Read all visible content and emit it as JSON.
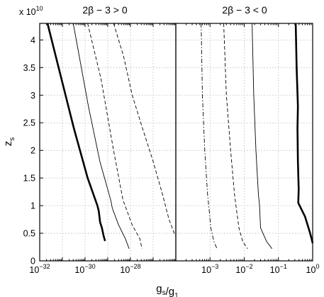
{
  "chart_data": [
    {
      "type": "line",
      "title": "2β − 3 > 0",
      "xlabel": "g_s/g_1",
      "ylabel": "z_s",
      "y_multiplier": "x 10^10",
      "x_scale": "log",
      "xlim": [
        1e-32,
        1e-26
      ],
      "ylim": [
        0,
        43000000000.0
      ],
      "grid": true,
      "x_tick_labels": [
        {
          "base": "10",
          "exp": "−32",
          "value": 1e-32
        },
        {
          "base": "10",
          "exp": "−30",
          "value": 1e-30
        },
        {
          "base": "10",
          "exp": "−28",
          "value": 1e-28
        }
      ],
      "y_tick_labels": [
        "0",
        "0.5",
        "1",
        "1.5",
        "2",
        "2.5",
        "3",
        "3.5",
        "4"
      ],
      "y_tick_values": [
        0,
        5000000000.0,
        10000000000.0,
        15000000000.0,
        20000000000.0,
        25000000000.0,
        30000000000.0,
        35000000000.0,
        40000000000.0
      ],
      "series": [
        {
          "style": "thick-solid",
          "x": [
            2.2e-32,
            3.2e-31,
            1.3e-30,
            3.5e-30,
            4e-30,
            4.6e-30,
            5.5e-30,
            6.5e-30,
            7.6e-30
          ],
          "y": [
            43000000000.0,
            24000000000.0,
            15000000000.0,
            10000000000.0,
            9000000000.0,
            7000000000.0,
            6000000000.0,
            4600000000.0,
            3600000000.0
          ]
        },
        {
          "style": "thin-solid",
          "x": [
            3e-31,
            1.4e-30,
            4.5e-30,
            1.35e-29,
            1.6e-29,
            3e-29,
            6e-29,
            8.7e-29
          ],
          "y": [
            43000000000.0,
            28000000000.0,
            18000000000.0,
            11000000000.0,
            9500000000.0,
            6500000000.0,
            4000000000.0,
            2200000000.0
          ]
        },
        {
          "style": "dashed",
          "x": [
            1.3e-30,
            5e-30,
            1.8e-29,
            4.7e-29,
            1.2e-28,
            2.6e-28,
            3.2e-28
          ],
          "y": [
            43000000000.0,
            33000000000.0,
            20000000000.0,
            11000000000.0,
            6500000000.0,
            4000000000.0,
            2200000000.0
          ]
        },
        {
          "style": "dashed",
          "x": [
            1.8e-29,
            5e-29,
            1.2e-28,
            3.4e-28,
            1e-27,
            2.6e-27,
            5e-27,
            9.5e-27
          ],
          "y": [
            43000000000.0,
            37000000000.0,
            30000000000.0,
            24000000000.0,
            18000000000.0,
            12000000000.0,
            7500000000.0,
            4500000000.0
          ]
        }
      ]
    },
    {
      "type": "line",
      "title": "2β − 3 < 0",
      "xlabel": "g_s/g_1",
      "x_scale": "log",
      "xlim": [
        0.0001,
        1
      ],
      "ylim": [
        0,
        43000000000.0
      ],
      "grid": true,
      "x_tick_labels": [
        {
          "base": "10",
          "exp": "−3",
          "value": 0.001
        },
        {
          "base": "10",
          "exp": "−2",
          "value": 0.01
        },
        {
          "base": "10",
          "exp": "−1",
          "value": 0.1
        },
        {
          "base": "10",
          "exp": "0",
          "value": 1
        }
      ],
      "series": [
        {
          "style": "dash-dot",
          "x": [
            0.00055,
            0.0006,
            0.0007,
            0.00085,
            0.00095,
            0.00105,
            0.0013,
            0.0016
          ],
          "y": [
            43000000000.0,
            30000000000.0,
            20000000000.0,
            12000000000.0,
            9000000000.0,
            6000000000.0,
            3500000000.0,
            2200000000.0
          ]
        },
        {
          "style": "dashed",
          "x": [
            0.0025,
            0.003,
            0.004,
            0.0052,
            0.006,
            0.007,
            0.009,
            0.0125
          ],
          "y": [
            43000000000.0,
            30000000000.0,
            20000000000.0,
            12000000000.0,
            9000000000.0,
            6000000000.0,
            3500000000.0,
            2200000000.0
          ]
        },
        {
          "style": "thin-solid",
          "x": [
            0.017,
            0.019,
            0.022,
            0.026,
            0.028,
            0.03,
            0.045,
            0.065
          ],
          "y": [
            43000000000.0,
            30000000000.0,
            20000000000.0,
            12000000000.0,
            10000000000.0,
            6000000000.0,
            3500000000.0,
            2200000000.0
          ]
        },
        {
          "style": "thick-solid",
          "x": [
            0.32,
            0.34,
            0.37,
            0.36,
            0.37,
            0.39,
            0.38,
            0.6,
            0.8,
            0.93,
            1.0
          ],
          "y": [
            43000000000.0,
            35000000000.0,
            28000000000.0,
            24000000000.0,
            18000000000.0,
            13000000000.0,
            10500000000.0,
            8000000000.0,
            5500000000.0,
            4000000000.0,
            3200000000.0
          ]
        }
      ]
    }
  ]
}
